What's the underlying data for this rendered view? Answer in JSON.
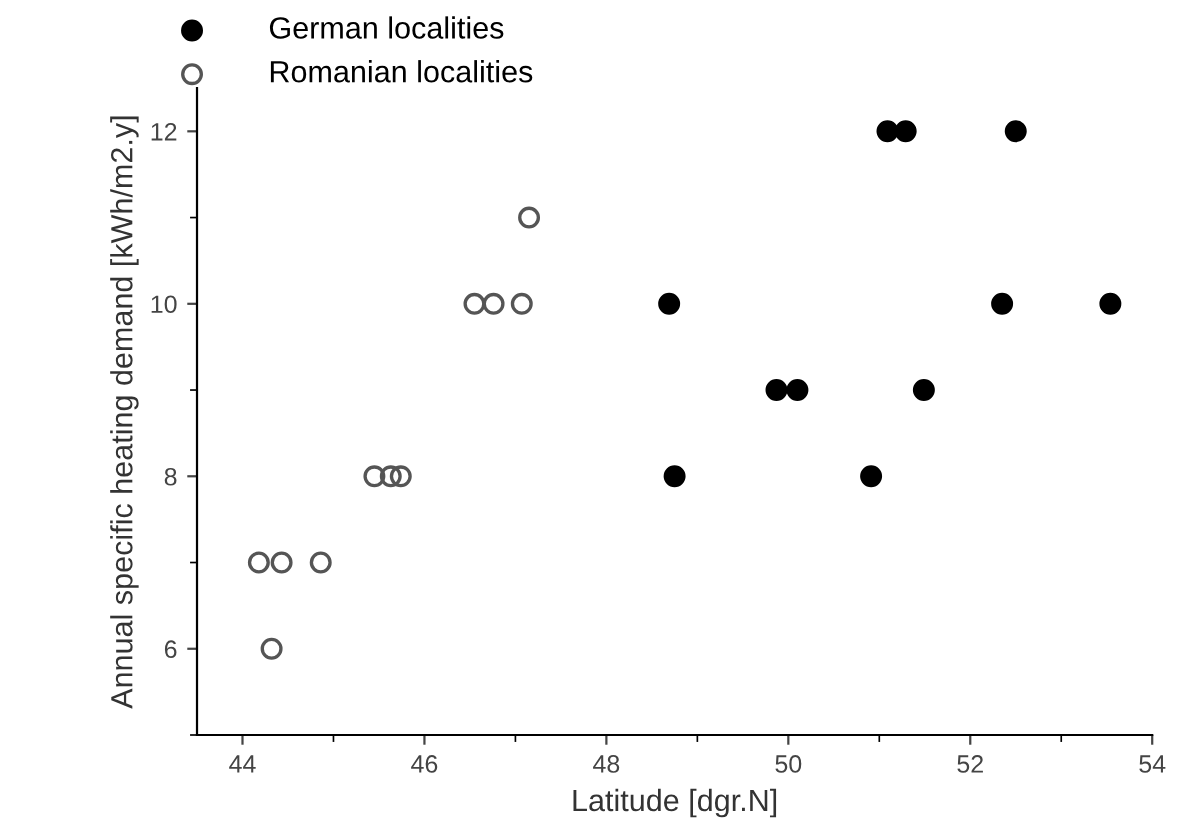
{
  "chart_data": {
    "type": "scatter",
    "xlabel": "Latitude [dgr.N]",
    "ylabel": "Annual specific heating demand [kWh/m2.y]",
    "xlim": [
      43.5,
      54
    ],
    "xticks": [
      44,
      46,
      48,
      50,
      52,
      54
    ],
    "ylim": [
      5,
      12.5
    ],
    "yticks": [
      6,
      8,
      10,
      12
    ],
    "legend": "top left",
    "marker": "circle",
    "grid": false,
    "series": [
      {
        "name": "German localities",
        "color": "#000000",
        "x": [
          51.09,
          51.29,
          52.5,
          48.69,
          52.35,
          53.54,
          49.87,
          50.1,
          51.49,
          48.75,
          50.91
        ],
        "values": [
          12,
          12,
          12,
          10,
          10,
          10,
          9,
          9,
          9,
          8,
          8
        ]
      },
      {
        "name": "Romanian localities",
        "color": "#555555",
        "x": [
          47.15,
          46.55,
          46.76,
          47.07,
          45.45,
          45.63,
          45.74,
          44.18,
          44.43,
          44.86,
          44.32
        ],
        "values": [
          11,
          10,
          10,
          10,
          8,
          8,
          8,
          7,
          7,
          7,
          6
        ]
      }
    ]
  }
}
